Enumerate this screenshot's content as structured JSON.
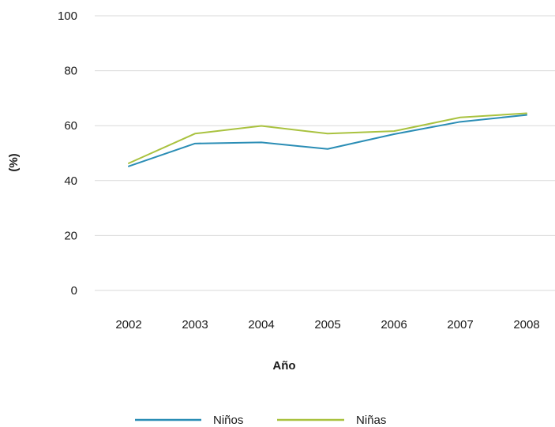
{
  "chart_data": {
    "type": "line",
    "categories": [
      "2002",
      "2003",
      "2004",
      "2005",
      "2006",
      "2007",
      "2008"
    ],
    "series": [
      {
        "name": "Niños",
        "color": "#2a8db5",
        "values": [
          45.2,
          53.5,
          53.9,
          51.5,
          56.9,
          61.4,
          63.9
        ]
      },
      {
        "name": "Niñas",
        "color": "#a9c23f",
        "values": [
          46.3,
          57.1,
          59.9,
          57.1,
          58.0,
          63.0,
          64.5
        ]
      }
    ],
    "xlabel": "Año",
    "ylabel": "(%)",
    "ylim": [
      0,
      100
    ],
    "yticks": [
      "0",
      "20",
      "40",
      "60",
      "80",
      "100"
    ],
    "grid": "horizontal",
    "legend": "bottom"
  }
}
